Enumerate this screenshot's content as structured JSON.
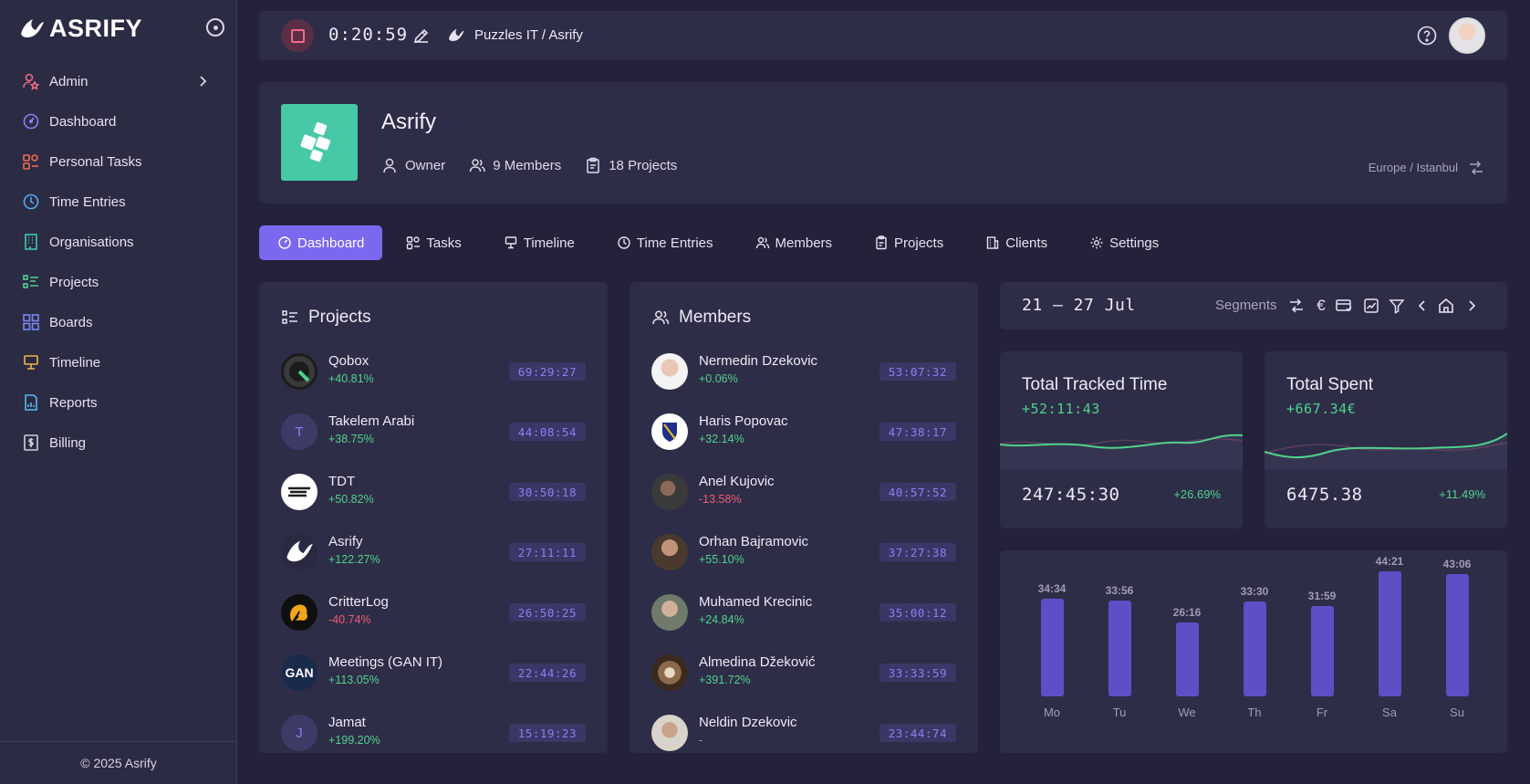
{
  "brand": {
    "name": "ASRIFY",
    "footer": "© 2025 Asrify"
  },
  "sidebar": {
    "items": [
      {
        "label": "Admin",
        "icon": "user-star-icon",
        "color": "#f06b84"
      },
      {
        "label": "Dashboard",
        "icon": "gauge-icon",
        "color": "#8d7ff0"
      },
      {
        "label": "Personal Tasks",
        "icon": "tasks-icon",
        "color": "#f06b54"
      },
      {
        "label": "Time Entries",
        "icon": "clock-icon",
        "color": "#56a8f0"
      },
      {
        "label": "Organisations",
        "icon": "building-icon",
        "color": "#3fc7a8"
      },
      {
        "label": "Projects",
        "icon": "list-icon",
        "color": "#4fd28c"
      },
      {
        "label": "Boards",
        "icon": "grid-icon",
        "color": "#7b86f0"
      },
      {
        "label": "Timeline",
        "icon": "timeline-icon",
        "color": "#f0b44a"
      },
      {
        "label": "Reports",
        "icon": "report-icon",
        "color": "#56b8f0"
      },
      {
        "label": "Billing",
        "icon": "dollar-icon",
        "color": "#cfcfd9"
      }
    ]
  },
  "topbar": {
    "timer": "0:20:59",
    "org_path": "Puzzles IT / Asrify"
  },
  "org": {
    "name": "Asrify",
    "role": "Owner",
    "members": "9 Members",
    "projects": "18 Projects",
    "timezone": "Europe / Istanbul"
  },
  "tabs": [
    {
      "label": "Dashboard",
      "icon": "gauge-icon"
    },
    {
      "label": "Tasks",
      "icon": "tasks-icon"
    },
    {
      "label": "Timeline",
      "icon": "timeline-icon"
    },
    {
      "label": "Time Entries",
      "icon": "clock-icon"
    },
    {
      "label": "Members",
      "icon": "users-icon"
    },
    {
      "label": "Projects",
      "icon": "clipboard-icon"
    },
    {
      "label": "Clients",
      "icon": "building-icon"
    },
    {
      "label": "Settings",
      "icon": "gear-icon"
    }
  ],
  "projects_panel": {
    "title": "Projects",
    "items": [
      {
        "name": "Qobox",
        "change": "+40.81%",
        "time": "69:29:27",
        "letter": ""
      },
      {
        "name": "Takelem Arabi",
        "change": "+38.75%",
        "time": "44:08:54",
        "letter": "T"
      },
      {
        "name": "TDT",
        "change": "+50.82%",
        "time": "30:50:18",
        "letter": ""
      },
      {
        "name": "Asrify",
        "change": "+122.27%",
        "time": "27:11:11",
        "letter": ""
      },
      {
        "name": "CritterLog",
        "change": "-40.74%",
        "time": "26:50:25",
        "letter": ""
      },
      {
        "name": "Meetings (GAN IT)",
        "change": "+113.05%",
        "time": "22:44:26",
        "letter": "GAN"
      },
      {
        "name": "Jamat",
        "change": "+199.20%",
        "time": "15:19:23",
        "letter": "J"
      }
    ]
  },
  "members_panel": {
    "title": "Members",
    "items": [
      {
        "name": "Nermedin Dzekovic",
        "change": "+0.06%",
        "time": "53:07:32"
      },
      {
        "name": "Haris Popovac",
        "change": "+32.14%",
        "time": "47:38:17"
      },
      {
        "name": "Anel Kujovic",
        "change": "-13.58%",
        "time": "40:57:52"
      },
      {
        "name": "Orhan Bajramovic",
        "change": "+55.10%",
        "time": "37:27:38"
      },
      {
        "name": "Muhamed Krecinic",
        "change": "+24.84%",
        "time": "35:00:12"
      },
      {
        "name": "Almedina Džeković",
        "change": "+391.72%",
        "time": "33:33:59"
      },
      {
        "name": "Neldin Dzekovic",
        "change": "-",
        "time": "23:44:74"
      }
    ]
  },
  "date_bar": {
    "range": "21 – 27 Jul",
    "segments_label": "Segments"
  },
  "stats": [
    {
      "title": "Total Tracked Time",
      "delta": "+52:11:43",
      "value": "247:45:30",
      "percent": "+26.69%"
    },
    {
      "title": "Total Spent",
      "delta": "+667.34€",
      "value": "6475.38",
      "percent": "+11.49%"
    }
  ],
  "chart_data": {
    "type": "bar",
    "categories": [
      "Mo",
      "Tu",
      "We",
      "Th",
      "Fr",
      "Sa",
      "Su"
    ],
    "values": [
      34.57,
      33.93,
      26.27,
      33.5,
      31.98,
      44.35,
      43.1
    ],
    "labels": [
      "34:34",
      "33:56",
      "26:16",
      "33:30",
      "31:59",
      "44:21",
      "43:06"
    ],
    "ylim": [
      0,
      50
    ],
    "color": "#5d4fc6"
  }
}
